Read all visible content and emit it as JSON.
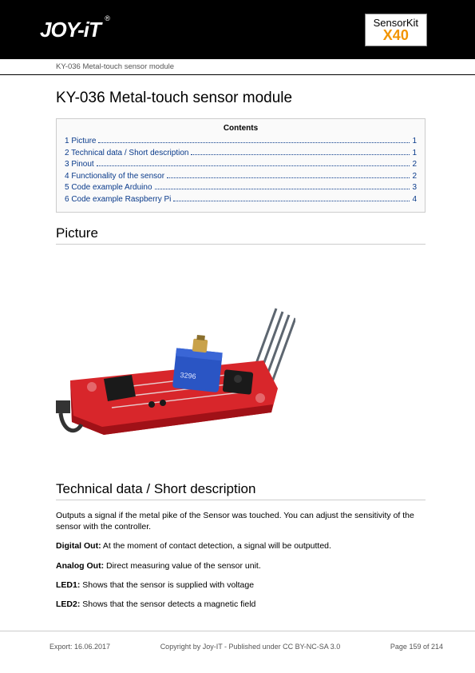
{
  "header": {
    "logo_text": "JOY-iT",
    "reg_mark": "®",
    "badge_line1": "SensorKit",
    "badge_line2": "X40",
    "subtitle": "KY-036 Metal-touch sensor module",
    "header_bg": "#000000",
    "badge_accent": "#f29400"
  },
  "title": "KY-036 Metal-touch sensor module",
  "toc": {
    "title": "Contents",
    "link_color": "#0a3b8b",
    "items": [
      {
        "n": "1",
        "label": "Picture",
        "page": "1"
      },
      {
        "n": "2",
        "label": "Technical data / Short description",
        "page": "1"
      },
      {
        "n": "3",
        "label": "Pinout",
        "page": "2"
      },
      {
        "n": "4",
        "label": "Functionality of the sensor",
        "page": "2"
      },
      {
        "n": "5",
        "label": "Code example Arduino",
        "page": "3"
      },
      {
        "n": "6",
        "label": "Code example Raspberry Pi",
        "page": "4"
      }
    ]
  },
  "sections": {
    "picture": "Picture",
    "techdata": "Technical data / Short description"
  },
  "picture": {
    "board_color": "#d8262b",
    "board_dark": "#a01117",
    "pot_body": "#2a55c4",
    "pot_top": "#c9a24a",
    "chip_color": "#1a1a1a",
    "pin_color": "#5d6670",
    "trace_color": "#eaeaea"
  },
  "description": {
    "intro": "Outputs a signal if the metal pike of the Sensor was touched. You can adjust the sensitivity of the sensor with the controller.",
    "digital_label": "Digital Out:",
    "digital_text": " At the moment of contact detection, a signal will be outputted.",
    "analog_label": "Analog Out:",
    "analog_text": " Direct measuring value of the sensor unit.",
    "led1_label": "LED1:",
    "led1_text": " Shows that the sensor is supplied with voltage",
    "led2_label": "LED2:",
    "led2_text": " Shows that the sensor detects a magnetic field"
  },
  "footer": {
    "export": "Export: 16.06.2017",
    "copyright": "Copyright by Joy-IT - Published under CC BY-NC-SA 3.0",
    "page": "Page 159 of 214"
  }
}
